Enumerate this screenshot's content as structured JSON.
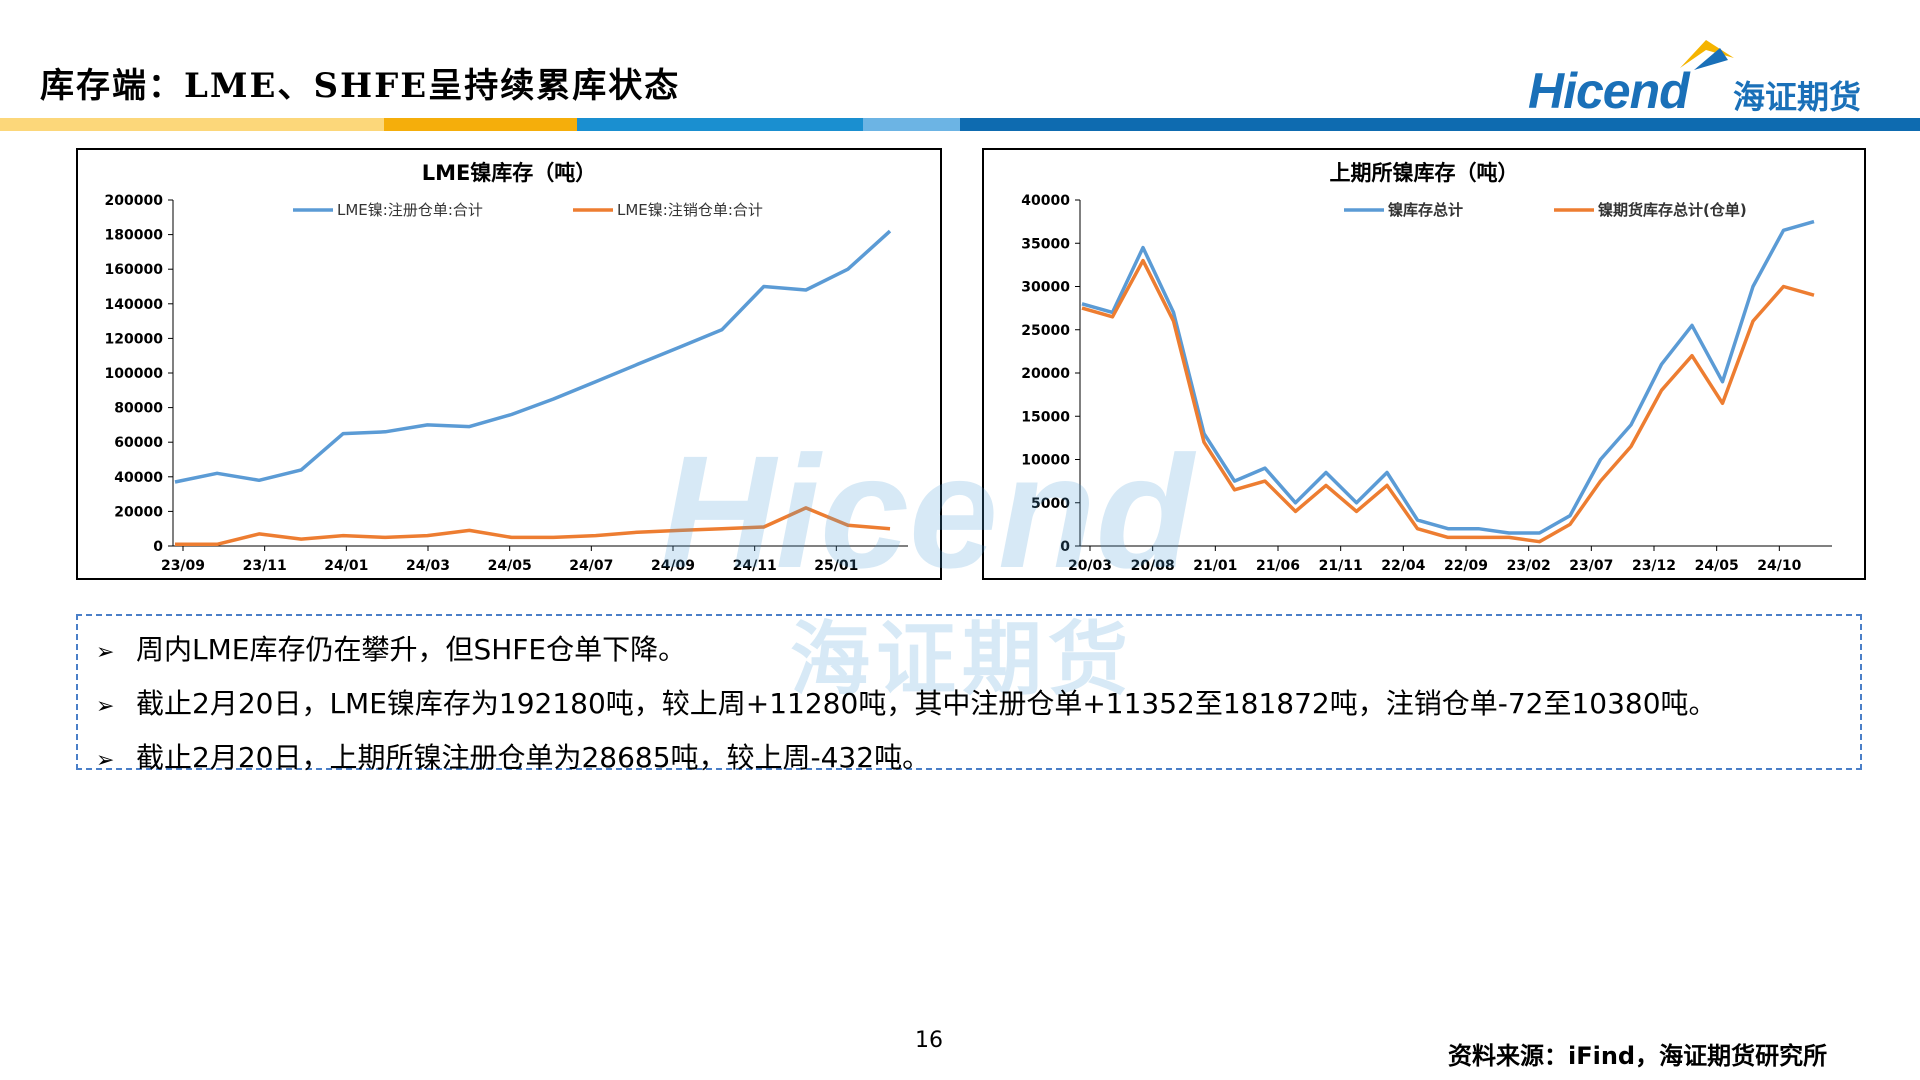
{
  "slide": {
    "title": "库存端：LME、SHFE呈持续累库状态",
    "page_number": "16",
    "source": "资料来源：iFind，海证期货研究所"
  },
  "logo": {
    "word": "Hicend",
    "cn": "海证期货",
    "brand_color": "#1a70b8",
    "accent_color": "#f5b400"
  },
  "watermark": {
    "word": "Hicend",
    "cn": "海证期货"
  },
  "band_colors": [
    "#fcd77a",
    "#f5ae0b",
    "#1a8fd0",
    "#6cb4e4",
    "#0e6bb0"
  ],
  "notes": [
    "周内LME库存仍在攀升，但SHFE仓单下降。",
    "截止2月20日，LME镍库存为192180吨，较上周+11280吨，其中注册仓单+11352至181872吨，注销仓单-72至10380吨。",
    "截止2月20日，上期所镍注册仓单为28685吨，较上周-432吨。"
  ],
  "chart_data": [
    {
      "type": "line",
      "title": "LME镍库存（吨）",
      "x_tick_labels": [
        "23/09",
        "23/11",
        "24/01",
        "24/03",
        "24/05",
        "24/07",
        "24/09",
        "24/11",
        "25/01"
      ],
      "y_tick_labels": [
        "0",
        "20000",
        "40000",
        "60000",
        "80000",
        "100000",
        "120000",
        "140000",
        "160000",
        "180000",
        "200000"
      ],
      "ylim": [
        0,
        200000
      ],
      "x": [
        "23/09",
        "23/10",
        "23/11",
        "23/12",
        "24/01",
        "24/02",
        "24/03",
        "24/04",
        "24/05",
        "24/06",
        "24/07",
        "24/08",
        "24/09",
        "24/10",
        "24/11",
        "24/12",
        "25/01",
        "25/02"
      ],
      "series": [
        {
          "name": "LME镍:注册仓单:合计",
          "color": "#5b9bd5",
          "values": [
            37000,
            42000,
            38000,
            44000,
            65000,
            66000,
            70000,
            69000,
            76000,
            85000,
            95000,
            105000,
            115000,
            125000,
            150000,
            148000,
            160000,
            182000
          ]
        },
        {
          "name": "LME镍:注销仓单:合计",
          "color": "#ed7d31",
          "values": [
            1000,
            1000,
            7000,
            4000,
            6000,
            5000,
            6000,
            9000,
            5000,
            5000,
            6000,
            8000,
            9000,
            10000,
            11000,
            22000,
            12000,
            10000
          ]
        }
      ],
      "grid": false,
      "legend": "top"
    },
    {
      "type": "line",
      "title": "上期所镍库存（吨）",
      "x_tick_labels": [
        "20/03",
        "20/08",
        "21/01",
        "21/06",
        "21/11",
        "22/04",
        "22/09",
        "23/02",
        "23/07",
        "23/12",
        "24/05",
        "24/10"
      ],
      "y_tick_labels": [
        "0",
        "5000",
        "10000",
        "15000",
        "20000",
        "25000",
        "30000",
        "35000",
        "40000"
      ],
      "ylim": [
        0,
        40000
      ],
      "x": [
        "20/03",
        "20/06",
        "20/08",
        "20/10",
        "21/01",
        "21/03",
        "21/06",
        "21/08",
        "21/11",
        "22/02",
        "22/04",
        "22/06",
        "22/09",
        "22/12",
        "23/02",
        "23/05",
        "23/07",
        "23/10",
        "23/12",
        "24/03",
        "24/05",
        "24/07",
        "24/10",
        "24/12",
        "25/02"
      ],
      "series": [
        {
          "name": "镍库存总计",
          "color": "#5b9bd5",
          "values": [
            28000,
            27000,
            34500,
            27000,
            13000,
            7500,
            9000,
            5000,
            8500,
            5000,
            8500,
            3000,
            2000,
            2000,
            1500,
            1500,
            3500,
            10000,
            14000,
            21000,
            25500,
            19000,
            30000,
            36500,
            37500
          ]
        },
        {
          "name": "镍期货库存总计(仓单)",
          "color": "#ed7d31",
          "values": [
            27500,
            26500,
            33000,
            26000,
            12000,
            6500,
            7500,
            4000,
            7000,
            4000,
            7000,
            2000,
            1000,
            1000,
            1000,
            500,
            2500,
            7500,
            11500,
            18000,
            22000,
            16500,
            26000,
            30000,
            29000
          ]
        }
      ],
      "grid": false,
      "legend": "top"
    }
  ]
}
